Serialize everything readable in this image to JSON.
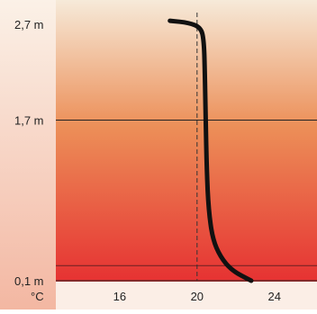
{
  "chart_data": {
    "type": "line",
    "x_unit_label": "°C",
    "x_ticks": [
      16,
      20,
      24
    ],
    "x_tick_labels": [
      "16",
      "20",
      "24"
    ],
    "y_ticks": [
      0.1,
      1.7,
      2.7
    ],
    "y_tick_labels": [
      "0,1 m",
      "1,7 m",
      "2,7 m"
    ],
    "xlim": [
      12.7,
      26.2
    ],
    "ylim": [
      0.1,
      2.7
    ],
    "reference_x": 20,
    "grid": "horizontal lines at 0.1, 0.25 and 1.7 m; dashed vertical line at 20 °C",
    "background": "vertical gradient from light cream at top to red at bottom",
    "series": [
      {
        "color": "#111111",
        "points": [
          [
            18.6,
            2.69
          ],
          [
            19.6,
            2.67
          ],
          [
            20.2,
            2.62
          ],
          [
            20.35,
            2.5
          ],
          [
            20.4,
            2.2
          ],
          [
            20.45,
            1.7
          ],
          [
            20.5,
            1.2
          ],
          [
            20.6,
            0.8
          ],
          [
            20.8,
            0.52
          ],
          [
            21.2,
            0.34
          ],
          [
            21.8,
            0.2
          ],
          [
            22.8,
            0.1
          ]
        ]
      }
    ],
    "colors": {
      "gradient_top": "#f6ead9",
      "gradient_mid": "#ec8f58",
      "gradient_bottom": "#e63232",
      "line": "#111111"
    }
  }
}
